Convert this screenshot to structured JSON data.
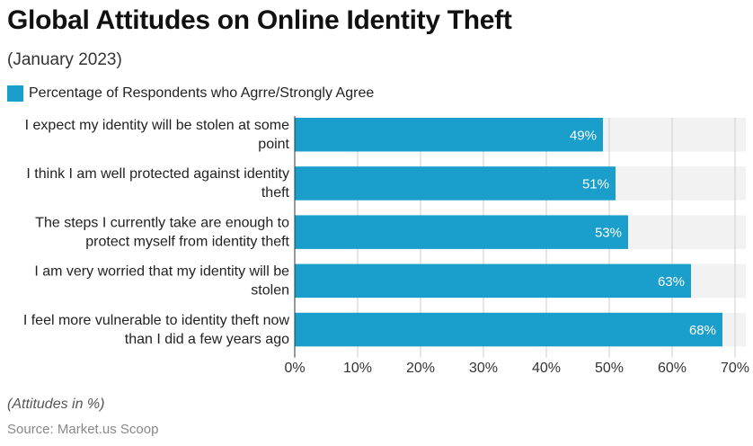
{
  "title": "Global Attitudes on Online Identity Theft",
  "subtitle": "(January 2023)",
  "note": "(Attitudes in %)",
  "source": "Source: Market.us Scoop",
  "colors": {
    "bar": "#1a9fcc",
    "track": "#f2f2f2",
    "grid": "#cccccc"
  },
  "chart_data": {
    "type": "bar",
    "orientation": "horizontal",
    "categories": [
      [
        "I expect my identity will be stolen at some",
        "point"
      ],
      [
        "I think I am well protected against identity",
        "theft"
      ],
      [
        "The steps I currently take are enough to",
        "protect myself from identity theft"
      ],
      [
        "I am very worried that my identity will be",
        "stolen"
      ],
      [
        "I feel more vulnerable to identity theft now",
        "than I did a few years ago"
      ]
    ],
    "series": [
      {
        "name": "Percentage of Respondents who Agrre/Strongly Agree",
        "values": [
          49,
          51,
          53,
          63,
          68
        ],
        "data_labels": [
          "49%",
          "51%",
          "53%",
          "63%",
          "68%"
        ]
      }
    ],
    "xlim": [
      0,
      70
    ],
    "x_ticks": [
      0,
      10,
      20,
      30,
      40,
      50,
      60,
      70
    ],
    "x_tick_labels": [
      "0%",
      "10%",
      "20%",
      "30%",
      "40%",
      "50%",
      "60%",
      "70%"
    ],
    "grid": true,
    "legend_position": "top-left"
  }
}
